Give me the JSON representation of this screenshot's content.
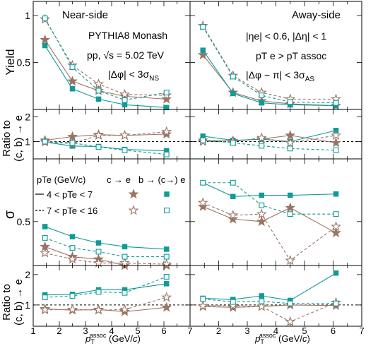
{
  "chart_data": {
    "type": "scatter",
    "x_label_main": "p",
    "x_label_sub": "T",
    "x_label_sup": "assoc",
    "x_label_unit_prefix": " (GeV/",
    "x_label_unit_italic": "c",
    "x_label_unit_suffix": ")",
    "xlim": [
      1,
      7
    ],
    "x_ticks": [
      "1",
      "2",
      "3",
      "4",
      "5",
      "6",
      "7"
    ],
    "x": [
      1.45,
      2.5,
      3.5,
      4.5,
      6.1
    ],
    "colors": {
      "ce": "#9a7464",
      "be": "#0f9b98",
      "ref": "#000000"
    },
    "labels": {
      "near_side": "Near-side",
      "away_side": "Away-side",
      "generator": "PYTHIA8 Monash",
      "collision": "pp, √s = 5.02 TeV",
      "near_cut": "|Δφ| < 3σ",
      "near_cut_sub": "NS",
      "eta_cut": "|ηe| < 0.6, |Δη| < 1",
      "pt_cut": "pT e > pT assoc",
      "away_cut": "|Δφ − π| < 3σ",
      "away_cut_sub": "AS"
    },
    "legend": {
      "header": "pTe (GeV/c)",
      "col_ce": "c → e",
      "col_be": "b → (c→) e",
      "row1": "4 < pTe < 7",
      "row2": "7 < pTe < 16"
    },
    "rows": [
      {
        "id": "yield",
        "ylabel": "Yield",
        "ylim": [
          0,
          1.15
        ],
        "ticks": [
          {
            "v": 0.5,
            "label": "0.5"
          },
          {
            "v": 1,
            "label": "1"
          }
        ],
        "ref_line": null
      },
      {
        "id": "yield-ratio",
        "ylabel_1": "Ratio to",
        "ylabel_2": "(c, b) → e",
        "ylim": [
          0.3,
          2.3
        ],
        "ticks": [
          {
            "v": 1,
            "label": "1"
          },
          {
            "v": 2,
            "label": "2"
          }
        ],
        "ref_line": 1
      },
      {
        "id": "sigma",
        "ylabel": "σ",
        "ylim": [
          0.15,
          1.0
        ],
        "ticks": [
          {
            "v": 0.5,
            "label": "0.5"
          }
        ],
        "ref_line": null
      },
      {
        "id": "sigma-ratio",
        "ylabel_1": "Ratio to",
        "ylabel_2": "(c, b) → e",
        "ylim": [
          0.3,
          2.3
        ],
        "ticks": [
          {
            "v": 1,
            "label": "1"
          },
          {
            "v": 2,
            "label": "2"
          }
        ],
        "ref_line": 1
      }
    ],
    "series": [
      {
        "name": "c → e, 4 < pTe < 7",
        "marker": "star",
        "filled": true,
        "color": "ce",
        "dash": false,
        "yield": {
          "near": [
            0.74,
            0.3,
            0.2,
            0.14,
            0.11
          ],
          "away": [
            0.58,
            0.18,
            0.09,
            0.06,
            0.04
          ]
        },
        "yield_ratio": {
          "near": [
            1.05,
            1.2,
            1.28,
            1.25,
            1.3
          ],
          "away": [
            1.05,
            1.03,
            1.1,
            1.25,
            0.95
          ]
        },
        "sigma": {
          "near": [
            0.3,
            0.22,
            0.2,
            0.15,
            0.15
          ],
          "away": [
            0.62,
            0.52,
            0.5,
            0.61,
            0.41
          ]
        },
        "sigma_ratio": {
          "near": [
            0.87,
            0.83,
            0.85,
            0.78,
            0.92
          ],
          "away": [
            0.95,
            0.92,
            0.95,
            1.0,
            0.98
          ]
        }
      },
      {
        "name": "b → (c→) e, 4 < pTe < 7",
        "marker": "square",
        "filled": true,
        "color": "be",
        "dash": false,
        "yield": {
          "near": [
            0.68,
            0.22,
            0.11,
            0.05,
            0.02
          ],
          "away": [
            0.63,
            0.17,
            0.07,
            0.05,
            0.04
          ]
        },
        "yield_ratio": {
          "near": [
            0.98,
            0.82,
            0.8,
            0.68,
            0.63
          ],
          "away": [
            1.22,
            1.05,
            1.1,
            1.0,
            1.45
          ]
        },
        "sigma": {
          "near": [
            0.46,
            0.38,
            0.33,
            0.3,
            0.28
          ],
          "away": [
            0.81,
            0.7,
            0.71,
            0.71,
            0.72
          ]
        },
        "sigma_ratio": {
          "near": [
            1.33,
            1.35,
            1.5,
            1.5,
            1.7
          ],
          "away": [
            1.22,
            1.18,
            1.3,
            1.15,
            2.05
          ]
        }
      },
      {
        "name": "c → e, 7 < pTe < 16",
        "marker": "star",
        "filled": false,
        "color": "ce",
        "dash": true,
        "yield": {
          "near": [
            0.96,
            0.47,
            0.27,
            0.16,
            0.15
          ],
          "away": [
            0.89,
            0.36,
            0.18,
            0.11,
            0.11
          ]
        },
        "yield_ratio": {
          "near": [
            0.98,
            0.92,
            1.25,
            1.25,
            1.4
          ],
          "away": [
            1.0,
            1.0,
            1.15,
            0.95,
            1.25
          ]
        },
        "sigma": {
          "near": [
            0.25,
            0.2,
            0.17,
            0.17,
            0.16
          ],
          "away": [
            0.65,
            0.55,
            0.56,
            0.19,
            0.46
          ]
        },
        "sigma_ratio": {
          "near": [
            0.84,
            0.85,
            0.83,
            0.85,
            1.25
          ],
          "away": [
            0.97,
            0.98,
            0.95,
            0.45,
            1.08
          ]
        }
      },
      {
        "name": "b → (c→) e, 7 < pTe < 16",
        "marker": "square",
        "filled": false,
        "color": "be",
        "dash": true,
        "yield": {
          "near": [
            0.97,
            0.45,
            0.2,
            0.1,
            0.18
          ],
          "away": [
            0.88,
            0.35,
            0.15,
            0.08,
            0.07
          ]
        },
        "yield_ratio": {
          "near": [
            1.0,
            0.95,
            0.78,
            0.65,
            0.48
          ],
          "away": [
            1.05,
            0.95,
            0.83,
            0.72,
            0.65
          ]
        },
        "sigma": {
          "near": [
            0.37,
            0.29,
            0.26,
            0.22,
            0.22
          ],
          "away": [
            0.81,
            0.81,
            0.63,
            0.56,
            0.56
          ]
        },
        "sigma_ratio": {
          "near": [
            1.25,
            1.3,
            1.43,
            1.4,
            1.93
          ],
          "away": [
            1.2,
            1.1,
            1.12,
            1.05,
            1.05
          ]
        }
      }
    ]
  }
}
